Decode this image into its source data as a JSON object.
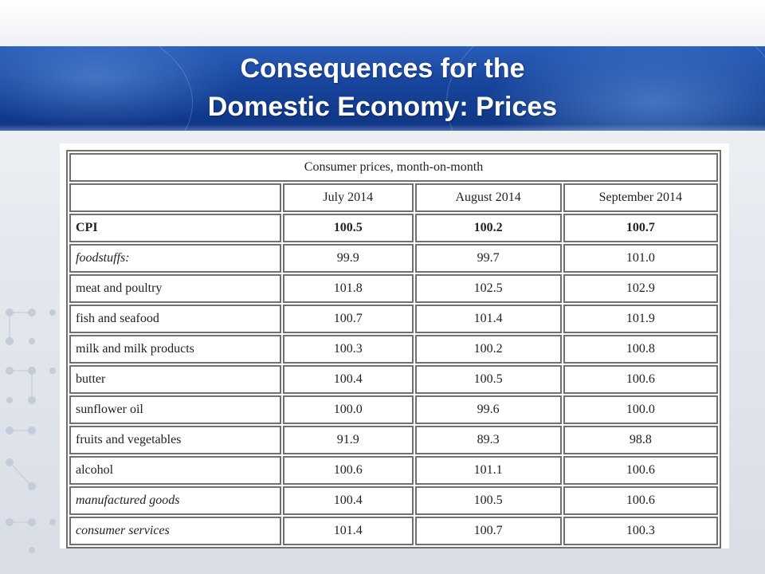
{
  "slide": {
    "title_line1": "Consequences for the",
    "title_line2": "Domestic Economy: Prices"
  },
  "table": {
    "caption": "Consumer prices, month-on-month",
    "columns": [
      "July 2014",
      "August 2014",
      "September 2014"
    ],
    "rows": [
      {
        "label": "CPI",
        "values": [
          "100.5",
          "100.2",
          "100.7"
        ],
        "style": "bold"
      },
      {
        "label": "foodstuffs:",
        "values": [
          "99.9",
          "99.7",
          "101.0"
        ],
        "style": "italic"
      },
      {
        "label": "meat and poultry",
        "values": [
          "101.8",
          "102.5",
          "102.9"
        ],
        "style": "normal"
      },
      {
        "label": "fish and seafood",
        "values": [
          "100.7",
          "101.4",
          "101.9"
        ],
        "style": "normal"
      },
      {
        "label": "milk and milk products",
        "values": [
          "100.3",
          "100.2",
          "100.8"
        ],
        "style": "normal"
      },
      {
        "label": "butter",
        "values": [
          "100.4",
          "100.5",
          "100.6"
        ],
        "style": "normal"
      },
      {
        "label": "sunflower oil",
        "values": [
          "100.0",
          "99.6",
          "100.0"
        ],
        "style": "normal"
      },
      {
        "label": "fruits and vegetables",
        "values": [
          "91.9",
          "89.3",
          "98.8"
        ],
        "style": "normal"
      },
      {
        "label": "alcohol",
        "values": [
          "100.6",
          "101.1",
          "100.6"
        ],
        "style": "normal"
      },
      {
        "label": "manufactured goods",
        "values": [
          "100.4",
          "100.5",
          "100.6"
        ],
        "style": "italic"
      },
      {
        "label": "consumer services",
        "values": [
          "101.4",
          "100.7",
          "100.3"
        ],
        "style": "italic"
      }
    ]
  },
  "colors": {
    "banner_blue": "#17449c",
    "title_text": "#ffffff",
    "table_border": "#707070"
  }
}
